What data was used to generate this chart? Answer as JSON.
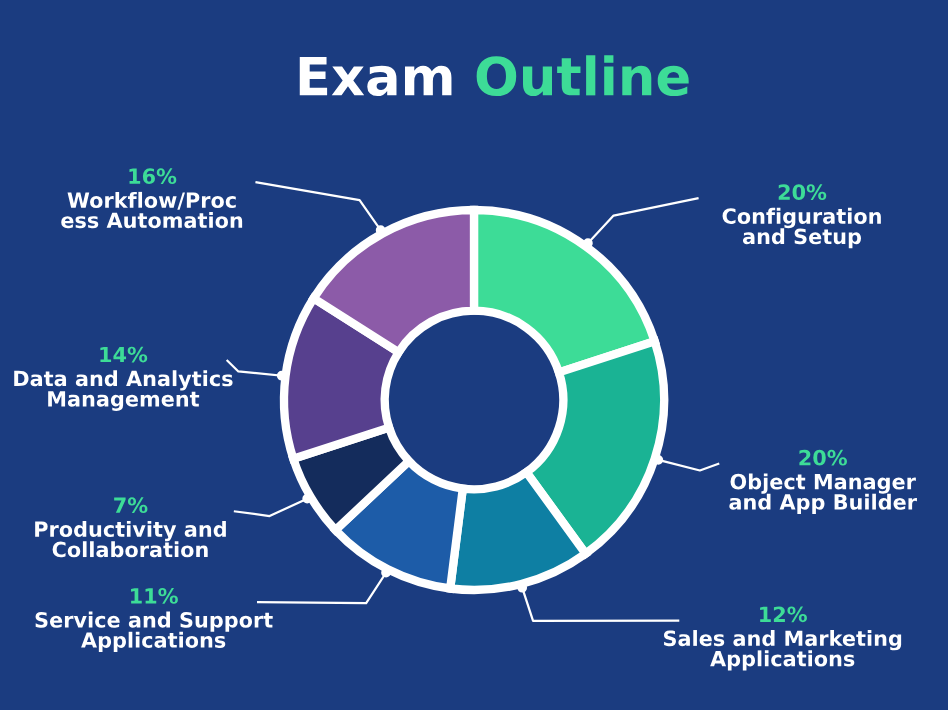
{
  "chart_data": {
    "type": "donut",
    "title": "Exam Outline",
    "categories": [
      "Configuration\nand Setup",
      "Object Manager\nand App Builder",
      "Sales and Marketing\nApplications",
      "Service and Support\nApplications",
      "Productivity and\nCollaboration",
      "Data and Analytics\nManagement",
      "Workflow/Proc\ness Automation"
    ],
    "values": [
      20,
      20,
      12,
      11,
      7,
      14,
      16
    ],
    "value_labels": [
      "20%",
      "20%",
      "12%",
      "11%",
      "7%",
      "14%",
      "16%"
    ],
    "colors": [
      "#3ddc97",
      "#1ab394",
      "#0e7fa3",
      "#1d5ca8",
      "#142c5c",
      "#57408e",
      "#8c5ba8"
    ]
  }
}
